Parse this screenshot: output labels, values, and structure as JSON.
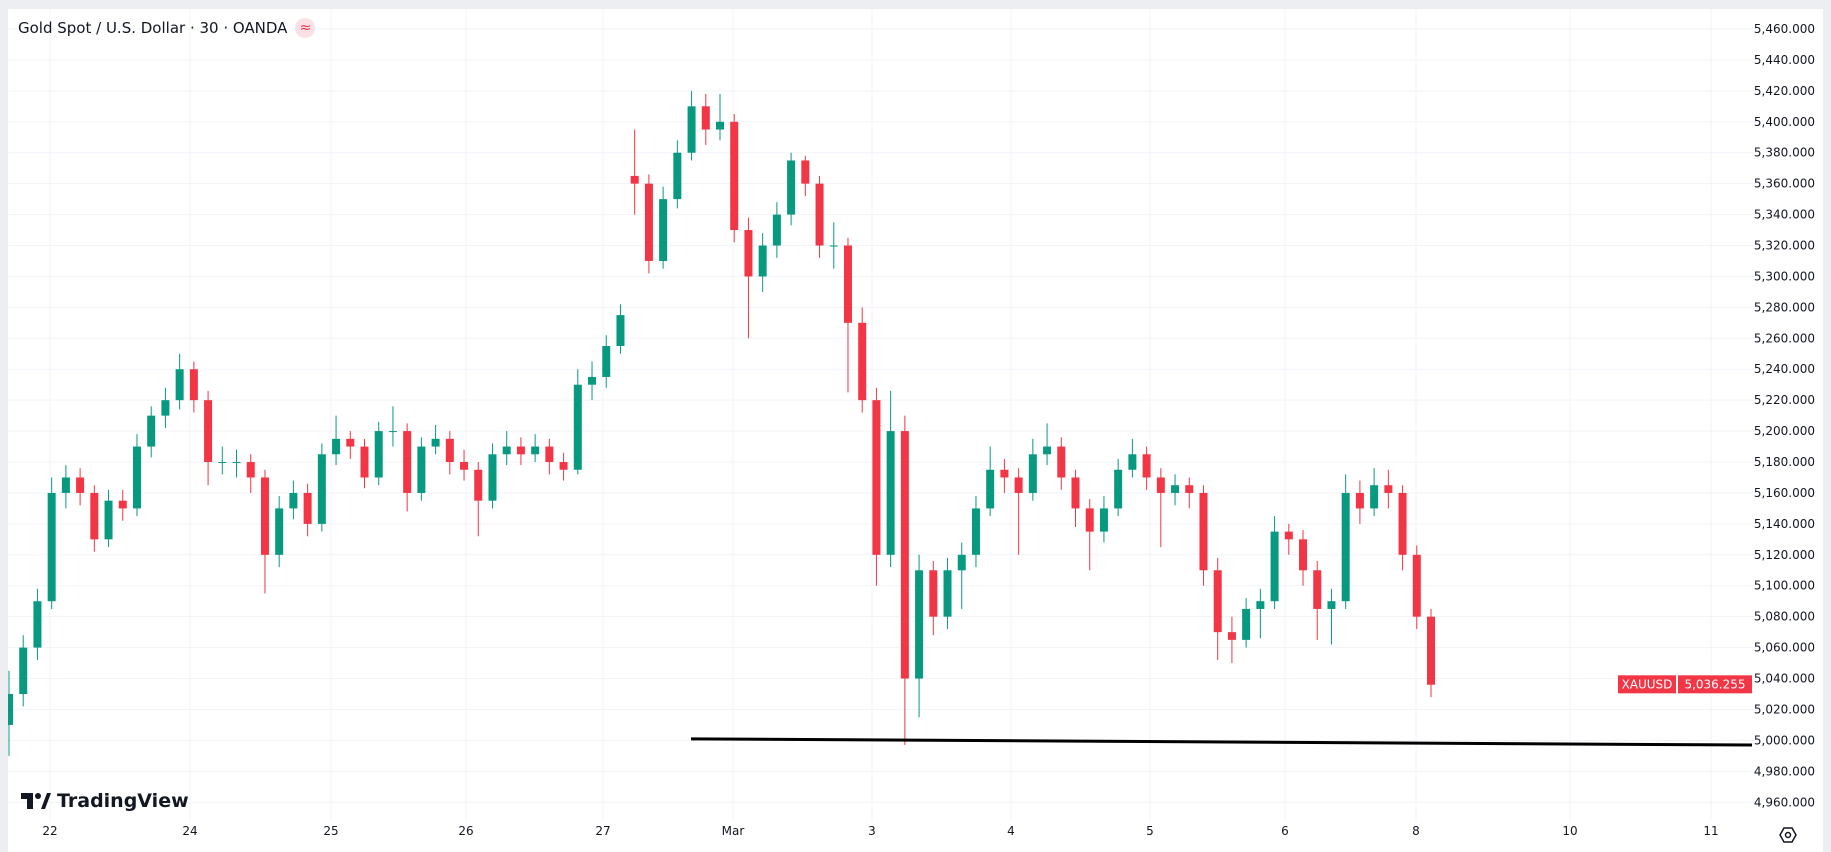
{
  "header": {
    "title": "Gold Spot / U.S. Dollar · 30 · OANDA",
    "badge_icon": "≈"
  },
  "branding": {
    "logo_text": "TradingView"
  },
  "chart_data": {
    "type": "candlestick",
    "symbol": "XAUUSD",
    "last_price": "5,036.255",
    "up_color": "#089981",
    "down_color": "#F23645",
    "grid": true,
    "ylim": [
      4950,
      5470
    ],
    "y_ticks": [
      "5,460.000",
      "5,440.000",
      "5,420.000",
      "5,400.000",
      "5,380.000",
      "5,360.000",
      "5,340.000",
      "5,320.000",
      "5,300.000",
      "5,280.000",
      "5,260.000",
      "5,240.000",
      "5,220.000",
      "5,200.000",
      "5,180.000",
      "5,160.000",
      "5,140.000",
      "5,120.000",
      "5,100.000",
      "5,080.000",
      "5,060.000",
      "5,040.000",
      "5,020.000",
      "5,000.000",
      "4,980.000",
      "4,960.000"
    ],
    "x_ticks": [
      "22",
      "24",
      "25",
      "26",
      "27",
      "Mar",
      "3",
      "4",
      "5",
      "6",
      "8",
      "10",
      "11"
    ],
    "trendline": {
      "from": {
        "date": "27",
        "price": 5001
      },
      "to": {
        "date": "11",
        "price": 4997
      },
      "color": "#000000"
    },
    "candles": [
      [
        5010,
        5045,
        4990,
        5030
      ],
      [
        5030,
        5068,
        5022,
        5060
      ],
      [
        5060,
        5098,
        5052,
        5090
      ],
      [
        5090,
        5170,
        5085,
        5160
      ],
      [
        5160,
        5178,
        5150,
        5170
      ],
      [
        5170,
        5176,
        5152,
        5160
      ],
      [
        5160,
        5165,
        5122,
        5130
      ],
      [
        5130,
        5162,
        5125,
        5155
      ],
      [
        5155,
        5162,
        5142,
        5150
      ],
      [
        5150,
        5198,
        5145,
        5190
      ],
      [
        5190,
        5216,
        5183,
        5210
      ],
      [
        5210,
        5228,
        5202,
        5220
      ],
      [
        5220,
        5250,
        5214,
        5240
      ],
      [
        5240,
        5245,
        5212,
        5220
      ],
      [
        5220,
        5226,
        5165,
        5180
      ],
      [
        5180,
        5190,
        5172,
        5180
      ],
      [
        5180,
        5188,
        5170,
        5180
      ],
      [
        5180,
        5185,
        5160,
        5170
      ],
      [
        5170,
        5175,
        5095,
        5120
      ],
      [
        5120,
        5158,
        5112,
        5150
      ],
      [
        5150,
        5168,
        5143,
        5160
      ],
      [
        5160,
        5166,
        5132,
        5140
      ],
      [
        5140,
        5192,
        5135,
        5185
      ],
      [
        5185,
        5210,
        5178,
        5195
      ],
      [
        5195,
        5200,
        5182,
        5190
      ],
      [
        5190,
        5195,
        5163,
        5170
      ],
      [
        5170,
        5206,
        5165,
        5200
      ],
      [
        5200,
        5216,
        5190,
        5200
      ],
      [
        5200,
        5205,
        5148,
        5160
      ],
      [
        5160,
        5196,
        5155,
        5190
      ],
      [
        5190,
        5204,
        5185,
        5195
      ],
      [
        5195,
        5200,
        5172,
        5180
      ],
      [
        5180,
        5188,
        5168,
        5175
      ],
      [
        5175,
        5180,
        5132,
        5155
      ],
      [
        5155,
        5192,
        5150,
        5185
      ],
      [
        5185,
        5200,
        5178,
        5190
      ],
      [
        5190,
        5196,
        5178,
        5185
      ],
      [
        5185,
        5198,
        5180,
        5190
      ],
      [
        5190,
        5195,
        5172,
        5180
      ],
      [
        5180,
        5186,
        5168,
        5175
      ],
      [
        5175,
        5240,
        5172,
        5230
      ],
      [
        5230,
        5245,
        5220,
        5235
      ],
      [
        5235,
        5262,
        5228,
        5255
      ],
      [
        5255,
        5282,
        5250,
        5275
      ],
      [
        5365,
        5395,
        5340,
        5360
      ],
      [
        5360,
        5366,
        5302,
        5310
      ],
      [
        5310,
        5358,
        5305,
        5350
      ],
      [
        5350,
        5388,
        5344,
        5380
      ],
      [
        5380,
        5420,
        5375,
        5410
      ],
      [
        5410,
        5418,
        5385,
        5395
      ],
      [
        5395,
        5418,
        5388,
        5400
      ],
      [
        5400,
        5405,
        5322,
        5330
      ],
      [
        5330,
        5338,
        5260,
        5300
      ],
      [
        5300,
        5328,
        5290,
        5320
      ],
      [
        5320,
        5348,
        5312,
        5340
      ],
      [
        5340,
        5380,
        5333,
        5375
      ],
      [
        5375,
        5378,
        5352,
        5360
      ],
      [
        5360,
        5365,
        5312,
        5320
      ],
      [
        5320,
        5335,
        5305,
        5320
      ],
      [
        5320,
        5325,
        5225,
        5270
      ],
      [
        5270,
        5280,
        5212,
        5220
      ],
      [
        5220,
        5228,
        5100,
        5120
      ],
      [
        5120,
        5226,
        5112,
        5200
      ],
      [
        5200,
        5210,
        4997,
        5040
      ],
      [
        5040,
        5120,
        5015,
        5110
      ],
      [
        5110,
        5116,
        5068,
        5080
      ],
      [
        5080,
        5118,
        5072,
        5110
      ],
      [
        5110,
        5128,
        5085,
        5120
      ],
      [
        5120,
        5158,
        5112,
        5150
      ],
      [
        5150,
        5190,
        5145,
        5175
      ],
      [
        5175,
        5182,
        5160,
        5170
      ],
      [
        5170,
        5176,
        5120,
        5160
      ],
      [
        5160,
        5195,
        5155,
        5185
      ],
      [
        5185,
        5205,
        5178,
        5190
      ],
      [
        5190,
        5196,
        5162,
        5170
      ],
      [
        5170,
        5175,
        5138,
        5150
      ],
      [
        5150,
        5156,
        5110,
        5135
      ],
      [
        5135,
        5158,
        5128,
        5150
      ],
      [
        5150,
        5182,
        5145,
        5175
      ],
      [
        5175,
        5195,
        5170,
        5185
      ],
      [
        5185,
        5190,
        5162,
        5170
      ],
      [
        5170,
        5176,
        5125,
        5160
      ],
      [
        5160,
        5172,
        5152,
        5165
      ],
      [
        5165,
        5170,
        5150,
        5160
      ],
      [
        5160,
        5165,
        5100,
        5110
      ],
      [
        5110,
        5118,
        5052,
        5070
      ],
      [
        5070,
        5080,
        5050,
        5065
      ],
      [
        5065,
        5092,
        5060,
        5085
      ],
      [
        5085,
        5098,
        5066,
        5090
      ],
      [
        5090,
        5145,
        5085,
        5135
      ],
      [
        5135,
        5140,
        5120,
        5130
      ],
      [
        5130,
        5136,
        5100,
        5110
      ],
      [
        5110,
        5116,
        5065,
        5085
      ],
      [
        5085,
        5098,
        5062,
        5090
      ],
      [
        5090,
        5172,
        5085,
        5160
      ],
      [
        5160,
        5168,
        5140,
        5150
      ],
      [
        5150,
        5176,
        5145,
        5165
      ],
      [
        5165,
        5175,
        5150,
        5160
      ],
      [
        5160,
        5165,
        5110,
        5120
      ],
      [
        5120,
        5126,
        5072,
        5080
      ],
      [
        5080,
        5085,
        5028,
        5036
      ]
    ]
  }
}
